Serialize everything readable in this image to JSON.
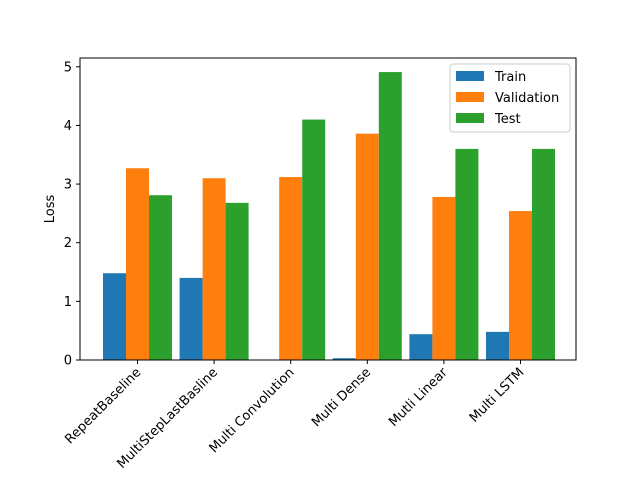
{
  "chart_data": {
    "type": "bar",
    "title": "",
    "xlabel": "",
    "ylabel": "Loss",
    "ylim": [
      0,
      5.15
    ],
    "yticks": [
      0,
      1,
      2,
      3,
      4,
      5
    ],
    "categories": [
      "RepeatBaseline",
      "MultiStepLastBasline",
      "Multi Convolution",
      "Multi Dense",
      "Mutli Linear",
      "Multi LSTM"
    ],
    "series": [
      {
        "name": "Train",
        "color": "#1f77b4",
        "values": [
          1.48,
          1.4,
          0.0,
          0.03,
          0.44,
          0.48
        ]
      },
      {
        "name": "Validation",
        "color": "#ff7f0e",
        "values": [
          3.27,
          3.1,
          3.12,
          3.86,
          2.78,
          2.54
        ]
      },
      {
        "name": "Test",
        "color": "#2ca02c",
        "values": [
          2.81,
          2.68,
          4.1,
          4.91,
          3.6,
          3.6
        ]
      }
    ],
    "legend_position": "top-right",
    "grid": false
  }
}
